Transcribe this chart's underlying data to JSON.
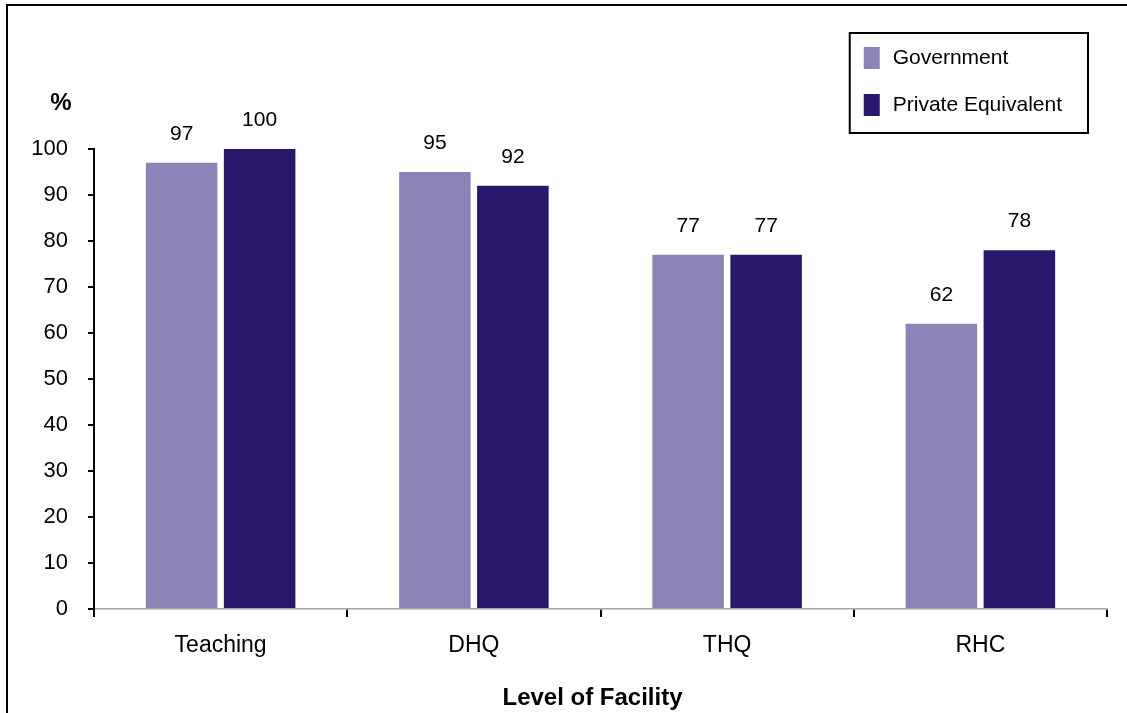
{
  "chart_data": {
    "type": "bar",
    "xlabel": "Level of Facility",
    "ylabel": "%",
    "categories": [
      "Teaching",
      "DHQ",
      "THQ",
      "RHC"
    ],
    "series": [
      {
        "name": "Government",
        "color": "#8c84b6",
        "values": [
          97,
          95,
          77,
          62
        ]
      },
      {
        "name": "Private Equivalent",
        "color": "#2a176b",
        "values": [
          100,
          92,
          77,
          78
        ]
      }
    ],
    "ylim": [
      0,
      100
    ],
    "yticks": [
      0,
      10,
      20,
      30,
      40,
      50,
      60,
      70,
      80,
      90,
      100
    ],
    "data_labels": true,
    "legend": "top right"
  }
}
